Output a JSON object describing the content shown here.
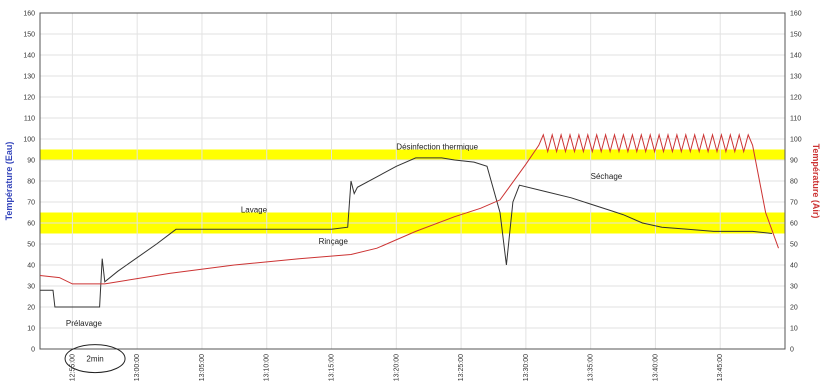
{
  "chart_data": {
    "type": "line",
    "title": "",
    "ylabel_left": "Température (Eau)",
    "ylabel_right": "Température (Air)",
    "ylim": [
      0,
      160
    ],
    "yticks": [
      0,
      10,
      20,
      30,
      40,
      50,
      60,
      70,
      80,
      90,
      100,
      110,
      120,
      130,
      140,
      150,
      160
    ],
    "xlim": [
      0,
      115
    ],
    "xticks": [
      {
        "x": 5,
        "label": "12:55:00"
      },
      {
        "x": 15,
        "label": "13:00:00"
      },
      {
        "x": 25,
        "label": "13:05:00"
      },
      {
        "x": 35,
        "label": "13:10:00"
      },
      {
        "x": 45,
        "label": "13:15:00"
      },
      {
        "x": 55,
        "label": "13:20:00"
      },
      {
        "x": 65,
        "label": "13:25:00"
      },
      {
        "x": 75,
        "label": "13:30:00"
      },
      {
        "x": 85,
        "label": "13:35:00"
      },
      {
        "x": 95,
        "label": "13:40:00"
      },
      {
        "x": 105,
        "label": "13:45:00"
      }
    ],
    "grid": true,
    "bands": [
      {
        "y0": 55,
        "y1": 65,
        "color": "#ffff00"
      },
      {
        "y0": 90,
        "y1": 95,
        "color": "#ffff00"
      }
    ],
    "series": [
      {
        "color": "#333333",
        "x": [
          0,
          2,
          2.3,
          9,
          9.2,
          9.6,
          10,
          12,
          18,
          21,
          45,
          47.5,
          48,
          48.5,
          49,
          52,
          55,
          58,
          62,
          64,
          67,
          69,
          71,
          72,
          73,
          74,
          78,
          82,
          85,
          88,
          90,
          93,
          96,
          100,
          104,
          108,
          110,
          113
        ],
        "y": [
          28,
          28,
          20,
          20,
          20,
          43,
          32,
          37,
          50,
          57,
          57,
          58,
          80,
          74,
          77,
          82,
          87,
          91,
          91,
          90,
          89,
          87,
          65,
          40,
          70,
          78,
          75,
          72,
          69,
          66,
          64,
          60,
          58,
          57,
          56,
          56,
          56,
          55
        ]
      },
      {
        "color": "#cc3333",
        "x": [
          0,
          3,
          5,
          10,
          20,
          30,
          40,
          48,
          52,
          58,
          64,
          68,
          71,
          75,
          77,
          110,
          112,
          114
        ],
        "y": [
          35,
          34,
          31,
          31,
          36,
          40,
          43,
          45,
          48,
          56,
          63,
          67,
          71,
          88,
          97,
          97,
          65,
          48
        ],
        "oscillate": {
          "from": 77,
          "to": 110,
          "low": 94,
          "high": 102,
          "cycles": 24
        }
      }
    ],
    "annotations": [
      {
        "text": "Prélavage",
        "x": 4,
        "y": 11
      },
      {
        "text": "Lavage",
        "x": 31,
        "y": 65
      },
      {
        "text": "Rinçage",
        "x": 43,
        "y": 50
      },
      {
        "text": "Désinfection thermique",
        "x": 55,
        "y": 95
      },
      {
        "text": "Séchage",
        "x": 85,
        "y": 81
      }
    ],
    "callout": {
      "text": "2min",
      "x": 8.5,
      "y": -6
    }
  }
}
